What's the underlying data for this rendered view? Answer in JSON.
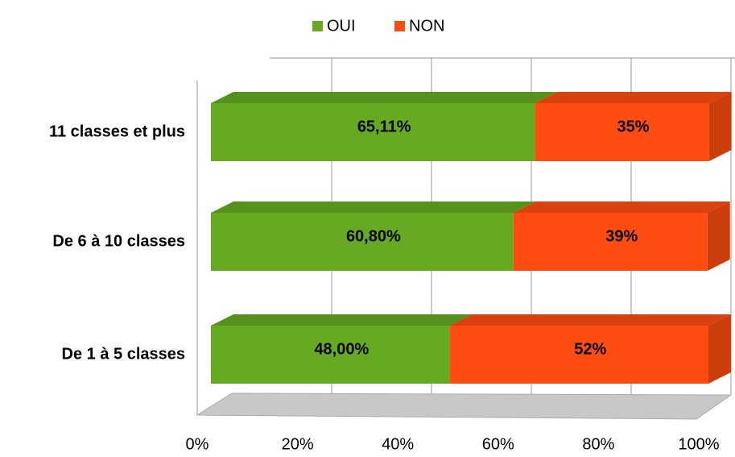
{
  "chart_data": {
    "type": "bar3d_stacked_horizontal",
    "categories": [
      "11 classes et plus",
      "De 6 à 10 classes",
      "De 1 à 5 classes"
    ],
    "series": [
      {
        "name": "OUI",
        "color": "#66aa22",
        "values": [
          65.11,
          60.8,
          48.0
        ],
        "value_labels": [
          "65,11%",
          "60,80%",
          "48,00%"
        ]
      },
      {
        "name": "NON",
        "color": "#ff4d12",
        "values": [
          35,
          39,
          52
        ],
        "value_labels": [
          "35%",
          "39%",
          "52%"
        ]
      }
    ],
    "xlim": [
      0,
      100
    ],
    "xticks": [
      {
        "value": 0,
        "label": "0%"
      },
      {
        "value": 20,
        "label": "20%"
      },
      {
        "value": 40,
        "label": "40%"
      },
      {
        "value": 60,
        "label": "60%"
      },
      {
        "value": 80,
        "label": "80%"
      },
      {
        "value": 100,
        "label": "100%"
      }
    ],
    "legend": "top",
    "grid": true
  }
}
